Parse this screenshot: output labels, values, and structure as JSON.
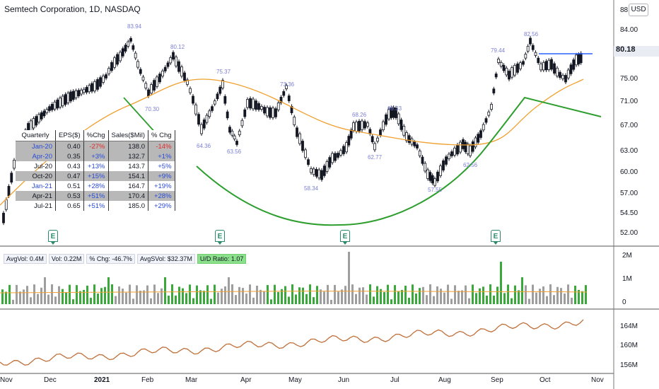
{
  "header": {
    "title": "Semtech Corporation, 1D, NASDAQ",
    "currency": "USD",
    "last_price": "80.18"
  },
  "price_axis": [
    "88",
    "84.00",
    "80.18",
    "75.00",
    "71.00",
    "67.00",
    "63.00",
    "60.00",
    "57.00",
    "54.50",
    "52.00"
  ],
  "volume_axis": [
    "2M",
    "1M",
    "0"
  ],
  "rs_axis": [
    "164M",
    "160M",
    "156M"
  ],
  "x_axis": [
    "Nov",
    "Dec",
    "2021",
    "Feb",
    "Mar",
    "Apr",
    "May",
    "Jun",
    "Jul",
    "Aug",
    "Sep",
    "Oct",
    "Nov"
  ],
  "peaks": [
    "83.94",
    "80.12",
    "70.30",
    "75.37",
    "73.36",
    "64.36",
    "63.56",
    "58.34",
    "68.26",
    "69.33",
    "62.77",
    "57.55",
    "62.56",
    "79.44",
    "82.56"
  ],
  "earnings_marker": "E",
  "fundamentals": {
    "headers": [
      "Quarterly",
      "EPS($)",
      "%Chg",
      "Sales($Mil)",
      "% Chg"
    ],
    "rows": [
      [
        "Jan-20",
        "0.40",
        "-27%",
        "138.0",
        "-14%"
      ],
      [
        "Apr-20",
        "0.35",
        "+3%",
        "132.7",
        "+1%"
      ],
      [
        "Jul-20",
        "0.43",
        "+13%",
        "143.7",
        "+5%"
      ],
      [
        "Oct-20",
        "0.47",
        "+15%",
        "154.1",
        "+9%"
      ],
      [
        "Jan-21",
        "0.51",
        "+28%",
        "164.7",
        "+19%"
      ],
      [
        "Apr-21",
        "0.53",
        "+51%",
        "170.4",
        "+28%"
      ],
      [
        "Jul-21",
        "0.65",
        "+51%",
        "185.0",
        "+29%"
      ]
    ]
  },
  "volume_stats": {
    "avg_vol": "AvgVol: 0.4M",
    "vol": "Vol: 0.22M",
    "pct_chg": "% Chg: -46.7%",
    "avg_dollar_vol": "AvgSVol: $32.37M",
    "ud_ratio": "U/D Ratio: 1.07"
  },
  "colors": {
    "up": "#131722",
    "moving_avg": "#f0a030",
    "pattern": "#2e9e2e",
    "pivot": "#2962ff",
    "rs_line": "#c0703a",
    "volume_up": "#3aa83a",
    "volume_down": "#9e9e9e"
  }
}
